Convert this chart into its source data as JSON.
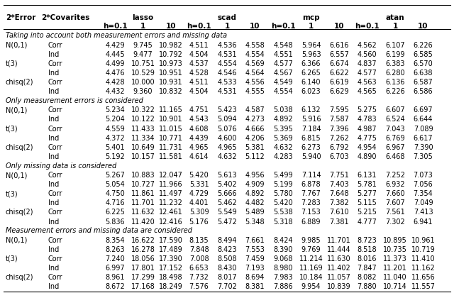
{
  "sections": [
    {
      "title": "Taking into account both measurement errors and missing data",
      "rows": [
        [
          "N(0,1)",
          "Corr",
          "4.429",
          "9.745",
          "10.982",
          "4.511",
          "4.536",
          "4.558",
          "4.548",
          "5.964",
          "6.616",
          "4.562",
          "6.107",
          "6.226"
        ],
        [
          "",
          "Ind",
          "4.445",
          "9.477",
          "10.792",
          "4.504",
          "4.531",
          "4.554",
          "4.551",
          "5.963",
          "6.557",
          "4.560",
          "6.199",
          "6.585"
        ],
        [
          "t(3)",
          "Corr",
          "4.499",
          "10.751",
          "10.973",
          "4.537",
          "4.554",
          "4.569",
          "4.577",
          "6.366",
          "6.674",
          "4.837",
          "6.383",
          "6.570"
        ],
        [
          "",
          "Ind",
          "4.476",
          "10.529",
          "10.951",
          "4.528",
          "4.546",
          "4.564",
          "4.567",
          "6.265",
          "6.622",
          "4.577",
          "6.280",
          "6.638"
        ],
        [
          "chisq(2)",
          "Corr",
          "4.428",
          "10.000",
          "10.931",
          "4.511",
          "4.533",
          "4.556",
          "4.549",
          "6.140",
          "6.619",
          "4.563",
          "6.136",
          "6.587"
        ],
        [
          "",
          "Ind",
          "4.432",
          "9.360",
          "10.832",
          "4.504",
          "4.531",
          "4.555",
          "4.554",
          "6.023",
          "6.629",
          "4.565",
          "6.226",
          "6.586"
        ]
      ]
    },
    {
      "title": "Only measurement errors is considered",
      "rows": [
        [
          "N(0,1)",
          "Corr",
          "5.234",
          "10.322",
          "11.165",
          "4.751",
          "5.423",
          "4.587",
          "5.038",
          "6.132",
          "7.595",
          "5.275",
          "6.607",
          "6.697"
        ],
        [
          "",
          "Ind",
          "5.204",
          "10.122",
          "10.901",
          "4.543",
          "5.094",
          "4.273",
          "4.892",
          "5.916",
          "7.587",
          "4.783",
          "6.524",
          "6.644"
        ],
        [
          "t(3)",
          "Corr",
          "4.559",
          "11.433",
          "11.015",
          "4.608",
          "5.076",
          "4.666",
          "5.395",
          "7.184",
          "7.396",
          "4.987",
          "7.043",
          "7.089"
        ],
        [
          "",
          "Ind",
          "4.372",
          "11.334",
          "10.771",
          "4.439",
          "4.600",
          "4.206",
          "5.369",
          "6.815",
          "7.262",
          "4.775",
          "6.769",
          "6.617"
        ],
        [
          "chisq(2)",
          "Corr",
          "5.401",
          "10.649",
          "11.731",
          "4.965",
          "4.965",
          "5.381",
          "4.632",
          "6.273",
          "6.792",
          "4.954",
          "6.967",
          "7.390"
        ],
        [
          "",
          "Ind",
          "5.192",
          "10.157",
          "11.581",
          "4.614",
          "4.632",
          "5.112",
          "4.283",
          "5.940",
          "6.703",
          "4.890",
          "6.468",
          "7.305"
        ]
      ]
    },
    {
      "title": "Only missing data is considered",
      "rows": [
        [
          "N(0,1)",
          "Corr",
          "5.267",
          "10.883",
          "12.047",
          "5.420",
          "5.613",
          "4.956",
          "5.499",
          "7.114",
          "7.751",
          "6.131",
          "7.252",
          "7.073"
        ],
        [
          "",
          "Ind",
          "5.054",
          "10.727",
          "11.966",
          "5.331",
          "5.402",
          "4.909",
          "5.199",
          "6.878",
          "7.403",
          "5.781",
          "6.932",
          "7.056"
        ],
        [
          "t(3)",
          "Corr",
          "4.750",
          "11.861",
          "11.497",
          "4.729",
          "5.666",
          "4.892",
          "5.780",
          "7.767",
          "7.648",
          "5.277",
          "7.660",
          "7.354"
        ],
        [
          "",
          "Ind",
          "4.716",
          "11.701",
          "11.232",
          "4.401",
          "5.462",
          "4.482",
          "5.420",
          "7.283",
          "7.382",
          "5.115",
          "7.607",
          "7.049"
        ],
        [
          "chisq(2)",
          "Corr",
          "6.225",
          "11.632",
          "12.461",
          "5.309",
          "5.549",
          "5.489",
          "5.538",
          "7.153",
          "7.610",
          "5.215",
          "7.561",
          "7.413"
        ],
        [
          "",
          "Ind",
          "5.836",
          "11.420",
          "12.416",
          "5.176",
          "5.472",
          "5.348",
          "5.318",
          "6.889",
          "7.381",
          "4.777",
          "7.302",
          "6.941"
        ]
      ]
    },
    {
      "title": "Measurement errors and missing data are considered",
      "rows": [
        [
          "N(0,1)",
          "Corr",
          "8.354",
          "16.622",
          "17.590",
          "8.135",
          "8.494",
          "7.661",
          "8.424",
          "9.985",
          "11.701",
          "8.723",
          "10.895",
          "10.961"
        ],
        [
          "",
          "Ind",
          "8.263",
          "16.278",
          "17.489",
          "7.848",
          "8.423",
          "7.553",
          "8.390",
          "9.769",
          "11.444",
          "8.518",
          "10.735",
          "10.719"
        ],
        [
          "t(3)",
          "Corr",
          "7.240",
          "18.056",
          "17.390",
          "7.008",
          "8.508",
          "7.459",
          "9.068",
          "11.214",
          "11.630",
          "8.016",
          "11.373",
          "11.410"
        ],
        [
          "",
          "Ind",
          "6.997",
          "17.801",
          "17.152",
          "6.653",
          "8.430",
          "7.193",
          "8.980",
          "11.169",
          "11.402",
          "7.847",
          "11.201",
          "11.162"
        ],
        [
          "chisq(2)",
          "Corr",
          "8.961",
          "17.299",
          "18.498",
          "7.732",
          "8.017",
          "8.694",
          "7.983",
          "10.184",
          "11.057",
          "8.082",
          "11.040",
          "11.656"
        ],
        [
          "",
          "Ind",
          "8.672",
          "17.168",
          "18.249",
          "7.576",
          "7.702",
          "8.381",
          "7.886",
          "9.954",
          "10.839",
          "7.880",
          "10.714",
          "11.557"
        ]
      ]
    }
  ],
  "bg_color": "#ffffff"
}
